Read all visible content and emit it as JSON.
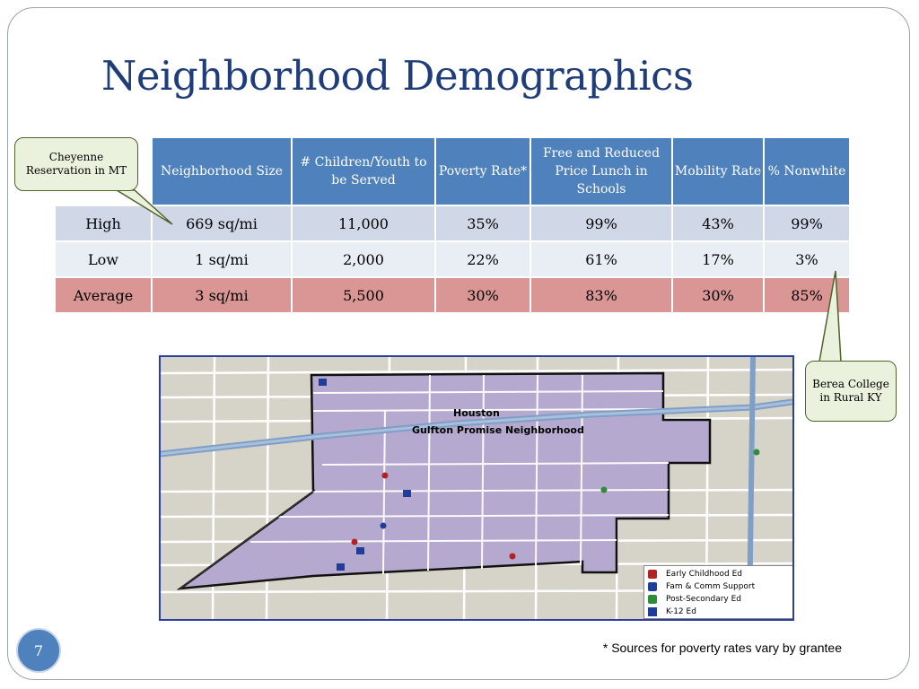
{
  "slide": {
    "title": "Neighborhood Demographics",
    "page_number": "7",
    "footnote": "* Sources for poverty rates vary by grantee"
  },
  "table": {
    "headers": [
      "",
      "Neighborhood Size",
      "# Children/Youth to be Served",
      "Poverty Rate*",
      "Free and Reduced Price Lunch in Schools",
      "Mobility Rate",
      "% Nonwhite"
    ],
    "rows": [
      {
        "label": "High",
        "cells": [
          "669 sq/mi",
          "11,000",
          "35%",
          "99%",
          "43%",
          "99%"
        ]
      },
      {
        "label": "Low",
        "cells": [
          "1 sq/mi",
          "2,000",
          "22%",
          "61%",
          "17%",
          "3%"
        ]
      },
      {
        "label": "Average",
        "cells": [
          "3 sq/mi",
          "5,500",
          "30%",
          "83%",
          "30%",
          "85%"
        ]
      }
    ]
  },
  "callouts": {
    "left": "Cheyenne Reservation in MT",
    "right": "Berea College in Rural KY"
  },
  "map": {
    "city_label": "Houston",
    "neighborhood_label": "Gulfton Promise Neighborhood",
    "legend": [
      {
        "label": "Early Childhood Ed",
        "icon": "red-pin-icon",
        "color": "#b22222"
      },
      {
        "label": "Fam & Comm Support",
        "icon": "blue-pin-icon",
        "color": "#1f3d9a"
      },
      {
        "label": "Post-Secondary Ed",
        "icon": "green-pin-icon",
        "color": "#2e8b3a"
      },
      {
        "label": "K-12 Ed",
        "icon": "school-icon",
        "color": "#1f3d9a"
      }
    ]
  }
}
